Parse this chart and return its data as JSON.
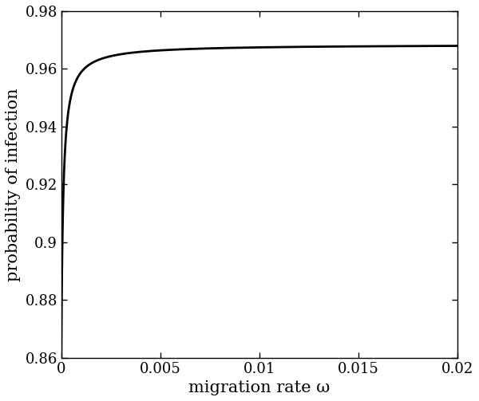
{
  "xlabel": "migration rate ω",
  "ylabel": "probability of infection",
  "xlim": [
    0,
    0.02
  ],
  "ylim": [
    0.86,
    0.98
  ],
  "xticks": [
    0,
    0.005,
    0.01,
    0.015,
    0.02
  ],
  "yticks": [
    0.86,
    0.88,
    0.9,
    0.92,
    0.94,
    0.96,
    0.98
  ],
  "ytick_labels": [
    "0.86",
    "0.88",
    "0.9",
    "0.92",
    "0.94",
    "0.96",
    "0.98"
  ],
  "xtick_labels": [
    "0",
    "0.005",
    "0.01",
    "0.015",
    "0.02"
  ],
  "line_color": "#000000",
  "line_width": 2.0,
  "background_color": "#ffffff",
  "curve_A": 0.9685,
  "curve_B": 1.065e-05,
  "curve_C": 0.0001,
  "figsize": [
    6.0,
    5.03
  ],
  "dpi": 100,
  "font_family": "serif",
  "tick_fontsize": 13,
  "label_fontsize": 15
}
